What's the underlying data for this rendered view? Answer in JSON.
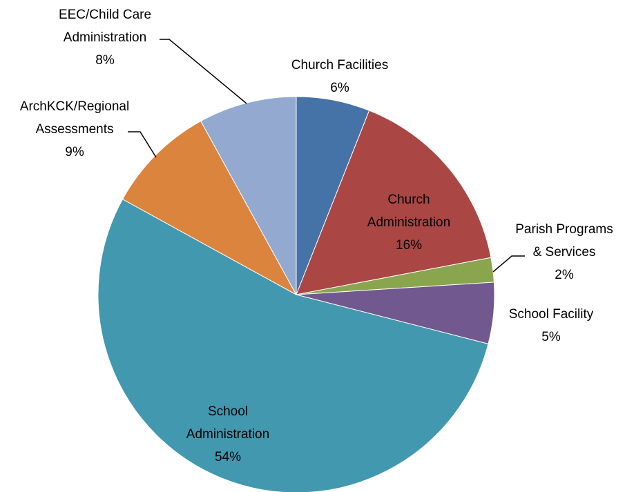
{
  "chart_data": {
    "type": "pie",
    "title": "",
    "slices": [
      {
        "label_lines": [
          "Church Facilities"
        ],
        "percent_label": "6%",
        "value": 6,
        "color": "#4572A7"
      },
      {
        "label_lines": [
          "Church",
          "Administration"
        ],
        "percent_label": "16%",
        "value": 16,
        "color": "#AA4643"
      },
      {
        "label_lines": [
          "Parish Programs",
          "& Services"
        ],
        "percent_label": "2%",
        "value": 2,
        "color": "#89A54E"
      },
      {
        "label_lines": [
          "School Facility"
        ],
        "percent_label": "5%",
        "value": 5,
        "color": "#71588F"
      },
      {
        "label_lines": [
          "School",
          "Administration"
        ],
        "percent_label": "54%",
        "value": 54,
        "color": "#4198AF"
      },
      {
        "label_lines": [
          "ArchKCK/Regional",
          "Assessments"
        ],
        "percent_label": "9%",
        "value": 9,
        "color": "#DB843D"
      },
      {
        "label_lines": [
          "EEC/Child Care",
          "Administration"
        ],
        "percent_label": "8%",
        "value": 8,
        "color": "#93A9CF"
      }
    ],
    "start_angle_deg": 0,
    "direction": "clockwise",
    "legend": "none",
    "label_position": "mixed (inside and outside with leader lines)"
  }
}
